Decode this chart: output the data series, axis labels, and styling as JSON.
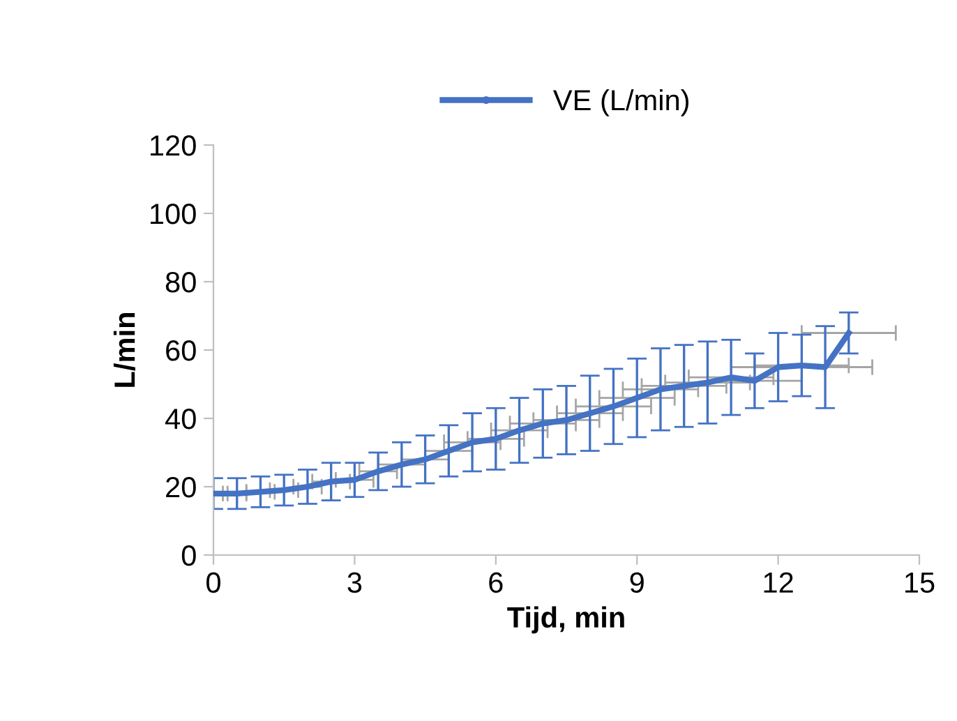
{
  "chart_data": {
    "type": "line",
    "xlabel": "Tijd, min",
    "ylabel": "L/min",
    "legend": "top",
    "x": [
      0,
      0.5,
      1,
      1.5,
      2,
      2.5,
      3,
      3.5,
      4,
      4.5,
      5,
      5.5,
      6,
      6.5,
      7,
      7.5,
      8,
      8.5,
      9,
      9.5,
      10,
      10.5,
      11,
      11.5,
      12,
      12.5,
      13,
      13.5
    ],
    "series": [
      {
        "name": "VE (L/min)",
        "color": "#4472c4",
        "values": [
          18,
          18,
          18.5,
          19,
          20,
          21.5,
          22,
          24.5,
          26.5,
          28,
          30.5,
          33,
          34,
          36.5,
          38.5,
          39.5,
          41.5,
          43.5,
          46,
          48.5,
          49.5,
          50.5,
          52,
          51,
          55,
          55.5,
          55,
          65
        ],
        "errors": [
          4.5,
          4.5,
          4.5,
          4.5,
          5,
          5.5,
          5,
          5.5,
          6.5,
          7,
          7.5,
          8.5,
          9,
          9.5,
          10,
          10,
          11,
          11,
          11.5,
          12,
          12,
          12,
          11,
          8,
          10,
          9,
          12,
          6
        ],
        "xerrors": [
          0.2,
          0.2,
          0.3,
          0.3,
          0.3,
          0.4,
          0.4,
          0.4,
          0.5,
          0.5,
          0.5,
          0.6,
          0.6,
          0.6,
          0.7,
          0.7,
          0.7,
          0.8,
          0.8,
          0.8,
          0.9,
          0.9,
          0.9,
          1,
          1,
          1,
          1,
          1
        ]
      }
    ],
    "xlim": [
      0,
      15
    ],
    "xticks": [
      0,
      3,
      6,
      9,
      12,
      15
    ],
    "ylim": [
      0,
      120
    ],
    "yticks": [
      0,
      20,
      40,
      60,
      80,
      100,
      120
    ],
    "grid": false,
    "marker": "none",
    "line_style": "solid"
  }
}
